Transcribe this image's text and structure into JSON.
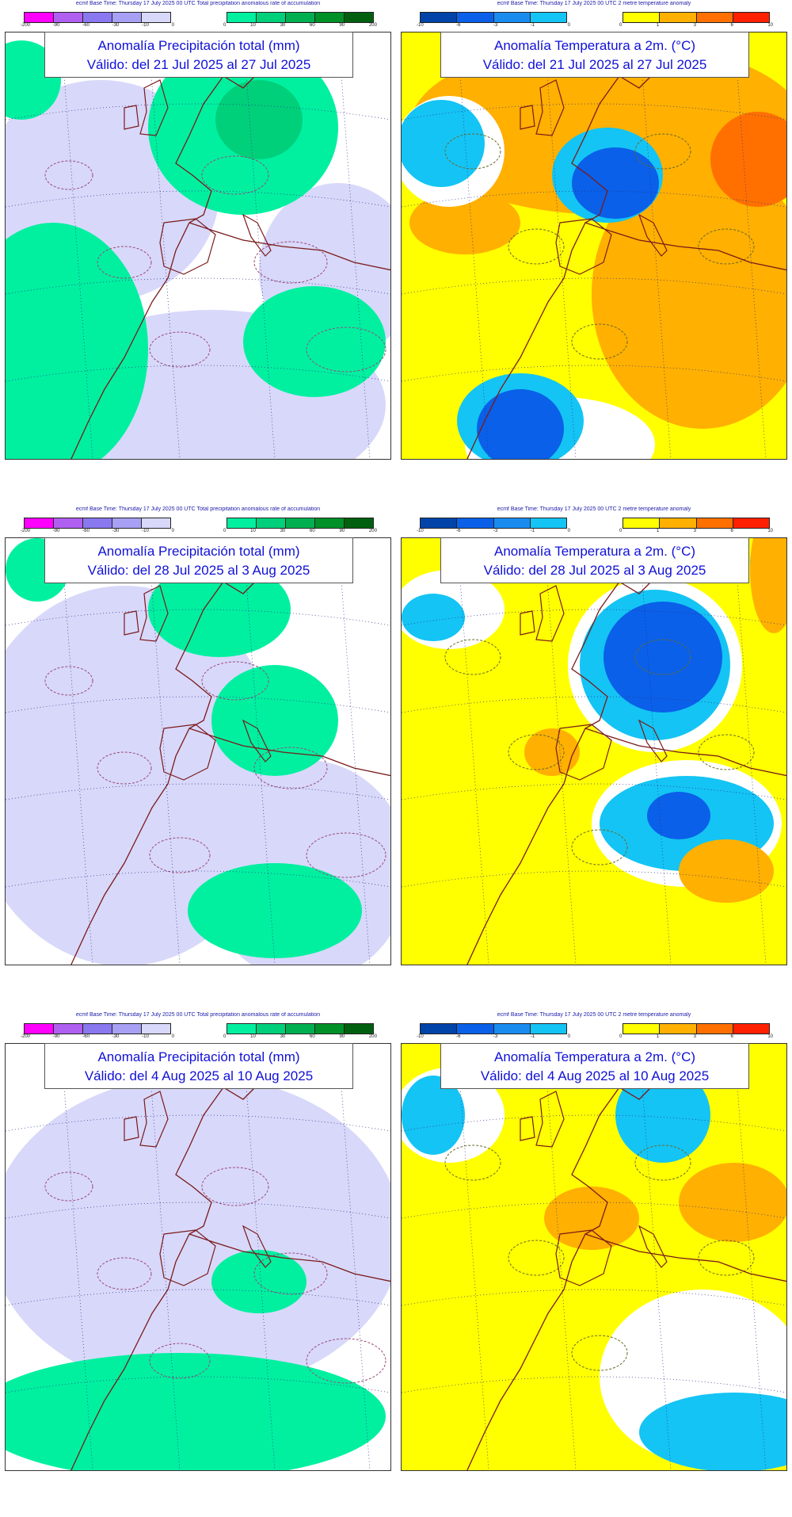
{
  "panels": [
    {
      "header": "ecmf  Base Time: Thursday 17 July 2025 00 UTC Total precipitation anomalous rate of accumulation",
      "title_line1": "Anomalía Precipitación total (mm)",
      "title_line2": "Válido: del 21 Jul 2025 al 27 Jul 2025",
      "neg_ticks": [
        "-200",
        "-90",
        "-60",
        "-30",
        "-10",
        "0"
      ],
      "pos_ticks": [
        "0",
        "10",
        "30",
        "60",
        "90",
        "200"
      ]
    },
    {
      "header": "ecmf  Base Time: Thursday 17 July 2025 00 UTC 2 metre temperature anomaly",
      "title_line1": "Anomalía Temperatura a 2m. (°C)",
      "title_line2": "Válido: del 21 Jul 2025 al 27 Jul 2025",
      "neg_ticks": [
        "-10",
        "-6",
        "-3",
        "-1",
        "0"
      ],
      "pos_ticks": [
        "0",
        "1",
        "3",
        "6",
        "10"
      ]
    },
    {
      "header": "ecmf  Base Time: Thursday 17 July 2025 00 UTC Total precipitation anomalous rate of accumulation",
      "title_line1": "Anomalía Precipitación total (mm)",
      "title_line2": "Válido: del 28 Jul 2025 al 3 Aug 2025",
      "neg_ticks": [
        "-200",
        "-90",
        "-60",
        "-30",
        "-10",
        "0"
      ],
      "pos_ticks": [
        "0",
        "10",
        "30",
        "60",
        "90",
        "200"
      ]
    },
    {
      "header": "ecmf  Base Time: Thursday 17 July 2025 00 UTC 2 metre temperature anomaly",
      "title_line1": "Anomalía Temperatura a 2m. (°C)",
      "title_line2": "Válido: del 28 Jul 2025 al 3 Aug 2025",
      "neg_ticks": [
        "-10",
        "-6",
        "-3",
        "-1",
        "0"
      ],
      "pos_ticks": [
        "0",
        "1",
        "3",
        "6",
        "10"
      ]
    },
    {
      "header": "ecmf  Base Time: Thursday 17 July 2025 00 UTC Total precipitation anomalous rate of accumulation",
      "title_line1": "Anomalía Precipitación total (mm)",
      "title_line2": "Válido: del 4 Aug 2025 al 10 Aug 2025",
      "neg_ticks": [
        "-200",
        "-90",
        "-60",
        "-30",
        "-10",
        "0"
      ],
      "pos_ticks": [
        "0",
        "10",
        "30",
        "60",
        "90",
        "200"
      ]
    },
    {
      "header": "ecmf  Base Time: Thursday 17 July 2025 00 UTC 2 metre temperature anomaly",
      "title_line1": "Anomalía Temperatura a 2m. (°C)",
      "title_line2": "Válido: del 4 Aug 2025 al 10 Aug 2025",
      "neg_ticks": [
        "-10",
        "-6",
        "-3",
        "-1",
        "0"
      ],
      "pos_ticks": [
        "0",
        "1",
        "3",
        "6",
        "10"
      ]
    }
  ],
  "colors": {
    "precip_neg": [
      "#ff00ff",
      "#b060f0",
      "#8a78f0",
      "#a8a0f4",
      "#d8d8fa"
    ],
    "precip_pos": [
      "#00f0a0",
      "#00d07a",
      "#00b050",
      "#009028",
      "#006010"
    ],
    "temp_neg": [
      "#0044aa",
      "#0a60e8",
      "#1a8cf0",
      "#14c4f4"
    ],
    "temp_pos": [
      "#ffff00",
      "#ffb000",
      "#ff7000",
      "#ff2000"
    ],
    "precip_bg": "#ffffff",
    "temp_bg": "#ffff00",
    "land_line": "#7a1a1a"
  }
}
